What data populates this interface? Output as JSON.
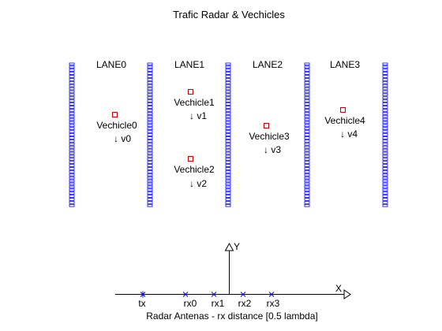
{
  "title": "Trafic Radar & Vechicles",
  "colors": {
    "lane_border": "#0000ff",
    "vehicle_marker": "#cc0000",
    "antenna_marker": "#0000ff",
    "axis": "#000000",
    "text": "#000000"
  },
  "lanes": [
    {
      "label": "LANE0"
    },
    {
      "label": "LANE1"
    },
    {
      "label": "LANE2"
    },
    {
      "label": "LANE3"
    }
  ],
  "vehicles": [
    {
      "name": "Vechicle0",
      "velocity": "↓ v0"
    },
    {
      "name": "Vechicle1",
      "velocity": "↓ v1"
    },
    {
      "name": "Vechicle2",
      "velocity": "↓ v2"
    },
    {
      "name": "Vechicle3",
      "velocity": "↓ v3"
    },
    {
      "name": "Vechicle4",
      "velocity": "↓ v4"
    }
  ],
  "antennas": [
    {
      "label": "tx",
      "marker": "*"
    },
    {
      "label": "rx0",
      "marker": "x"
    },
    {
      "label": "rx1",
      "marker": "x"
    },
    {
      "label": "rx2",
      "marker": "x"
    },
    {
      "label": "rx3",
      "marker": "x"
    }
  ],
  "axes": {
    "x_label": "X",
    "y_label": "Y"
  },
  "antenna_caption": "Radar Antenas - rx distance [0.5 lambda]"
}
